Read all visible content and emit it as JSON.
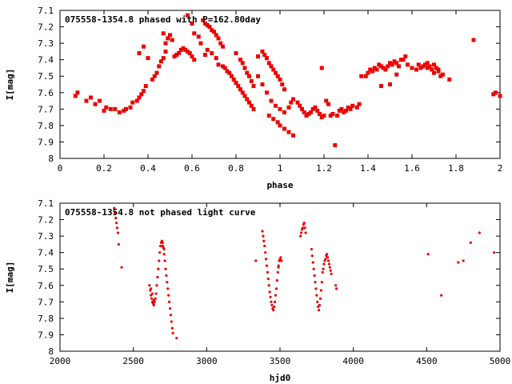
{
  "colors": {
    "marker": "#ee0000",
    "axis": "#000000",
    "background": "#ffffff"
  },
  "chart_data": [
    {
      "type": "scatter",
      "title": "075558-1354.8 phased with P=162.80day",
      "xlabel": "phase",
      "ylabel": "I[mag]",
      "xlim": [
        0,
        2
      ],
      "ylim": [
        7.1,
        8.0
      ],
      "y_inverted": true,
      "grid": false,
      "marker": "square",
      "x_ticks": [
        0,
        0.2,
        0.4,
        0.6,
        0.8,
        1,
        1.2,
        1.4,
        1.6,
        1.8,
        2
      ],
      "x_tick_labels": [
        "0",
        "0.2",
        "0.4",
        "0.6",
        "0.8",
        "1",
        "1.2",
        "1.4",
        "1.6",
        "1.8",
        "2"
      ],
      "y_ticks": [
        7.1,
        7.2,
        7.3,
        7.4,
        7.5,
        7.6,
        7.7,
        7.8,
        7.9,
        8.0
      ],
      "y_tick_labels": [
        "7.1",
        "7.2",
        "7.3",
        "7.4",
        "7.5",
        "7.6",
        "7.7",
        "7.8",
        "7.9",
        "8"
      ],
      "points": [
        [
          0.07,
          7.62
        ],
        [
          0.08,
          7.6
        ],
        [
          0.12,
          7.65
        ],
        [
          0.14,
          7.63
        ],
        [
          0.16,
          7.67
        ],
        [
          0.18,
          7.65
        ],
        [
          0.2,
          7.71
        ],
        [
          0.21,
          7.69
        ],
        [
          0.23,
          7.7
        ],
        [
          0.25,
          7.7
        ],
        [
          0.27,
          7.72
        ],
        [
          0.29,
          7.71
        ],
        [
          0.3,
          7.7
        ],
        [
          0.32,
          7.69
        ],
        [
          0.33,
          7.66
        ],
        [
          0.35,
          7.65
        ],
        [
          0.36,
          7.63
        ],
        [
          0.37,
          7.61
        ],
        [
          0.38,
          7.59
        ],
        [
          0.39,
          7.56
        ],
        [
          0.36,
          7.36
        ],
        [
          0.38,
          7.32
        ],
        [
          0.4,
          7.39
        ],
        [
          0.42,
          7.52
        ],
        [
          0.43,
          7.5
        ],
        [
          0.44,
          7.48
        ],
        [
          0.45,
          7.44
        ],
        [
          0.46,
          7.41
        ],
        [
          0.47,
          7.39
        ],
        [
          0.48,
          7.35
        ],
        [
          0.47,
          7.24
        ],
        [
          0.48,
          7.3
        ],
        [
          0.49,
          7.27
        ],
        [
          0.5,
          7.25
        ],
        [
          0.51,
          7.28
        ],
        [
          0.52,
          7.38
        ],
        [
          0.53,
          7.37
        ],
        [
          0.54,
          7.36
        ],
        [
          0.55,
          7.34
        ],
        [
          0.56,
          7.33
        ],
        [
          0.57,
          7.34
        ],
        [
          0.58,
          7.35
        ],
        [
          0.59,
          7.36
        ],
        [
          0.6,
          7.38
        ],
        [
          0.61,
          7.4
        ],
        [
          0.58,
          7.13
        ],
        [
          0.6,
          7.18
        ],
        [
          0.61,
          7.24
        ],
        [
          0.63,
          7.26
        ],
        [
          0.64,
          7.3
        ],
        [
          0.65,
          7.16
        ],
        [
          0.66,
          7.18
        ],
        [
          0.67,
          7.19
        ],
        [
          0.68,
          7.2
        ],
        [
          0.69,
          7.22
        ],
        [
          0.7,
          7.23
        ],
        [
          0.71,
          7.25
        ],
        [
          0.72,
          7.27
        ],
        [
          0.73,
          7.3
        ],
        [
          0.74,
          7.32
        ],
        [
          0.66,
          7.37
        ],
        [
          0.67,
          7.34
        ],
        [
          0.69,
          7.36
        ],
        [
          0.71,
          7.39
        ],
        [
          0.72,
          7.43
        ],
        [
          0.74,
          7.44
        ],
        [
          0.75,
          7.45
        ],
        [
          0.76,
          7.47
        ],
        [
          0.77,
          7.48
        ],
        [
          0.78,
          7.5
        ],
        [
          0.79,
          7.52
        ],
        [
          0.8,
          7.54
        ],
        [
          0.81,
          7.56
        ],
        [
          0.82,
          7.58
        ],
        [
          0.83,
          7.6
        ],
        [
          0.84,
          7.62
        ],
        [
          0.85,
          7.64
        ],
        [
          0.86,
          7.66
        ],
        [
          0.87,
          7.68
        ],
        [
          0.88,
          7.7
        ],
        [
          0.8,
          7.36
        ],
        [
          0.82,
          7.4
        ],
        [
          0.83,
          7.42
        ],
        [
          0.84,
          7.45
        ],
        [
          0.85,
          7.48
        ],
        [
          0.86,
          7.5
        ],
        [
          0.87,
          7.53
        ],
        [
          0.88,
          7.56
        ],
        [
          0.9,
          7.38
        ],
        [
          0.92,
          7.35
        ],
        [
          0.93,
          7.37
        ],
        [
          0.94,
          7.39
        ],
        [
          0.95,
          7.42
        ],
        [
          0.96,
          7.44
        ],
        [
          0.97,
          7.46
        ],
        [
          0.98,
          7.48
        ],
        [
          0.99,
          7.5
        ],
        [
          1.0,
          7.52
        ],
        [
          1.01,
          7.55
        ],
        [
          1.02,
          7.58
        ],
        [
          0.9,
          7.5
        ],
        [
          0.92,
          7.55
        ],
        [
          0.94,
          7.6
        ],
        [
          0.96,
          7.65
        ],
        [
          0.98,
          7.68
        ],
        [
          1.0,
          7.7
        ],
        [
          1.02,
          7.72
        ],
        [
          1.04,
          7.69
        ],
        [
          1.05,
          7.66
        ],
        [
          1.06,
          7.64
        ],
        [
          0.95,
          7.74
        ],
        [
          0.97,
          7.76
        ],
        [
          0.99,
          7.78
        ],
        [
          1.0,
          7.8
        ],
        [
          1.02,
          7.82
        ],
        [
          1.04,
          7.84
        ],
        [
          1.06,
          7.86
        ],
        [
          1.08,
          7.66
        ],
        [
          1.09,
          7.68
        ],
        [
          1.1,
          7.7
        ],
        [
          1.11,
          7.72
        ],
        [
          1.12,
          7.74
        ],
        [
          1.13,
          7.73
        ],
        [
          1.14,
          7.72
        ],
        [
          1.15,
          7.7
        ],
        [
          1.16,
          7.69
        ],
        [
          1.17,
          7.71
        ],
        [
          1.18,
          7.73
        ],
        [
          1.19,
          7.75
        ],
        [
          1.2,
          7.74
        ],
        [
          1.19,
          7.45
        ],
        [
          1.21,
          7.65
        ],
        [
          1.22,
          7.67
        ],
        [
          1.23,
          7.74
        ],
        [
          1.24,
          7.73
        ],
        [
          1.25,
          7.92
        ],
        [
          1.26,
          7.74
        ],
        [
          1.27,
          7.71
        ],
        [
          1.28,
          7.7
        ],
        [
          1.29,
          7.72
        ],
        [
          1.3,
          7.71
        ],
        [
          1.31,
          7.69
        ],
        [
          1.32,
          7.7
        ],
        [
          1.33,
          7.68
        ],
        [
          1.35,
          7.69
        ],
        [
          1.36,
          7.67
        ],
        [
          1.37,
          7.5
        ],
        [
          1.39,
          7.5
        ],
        [
          1.4,
          7.48
        ],
        [
          1.41,
          7.46
        ],
        [
          1.42,
          7.47
        ],
        [
          1.43,
          7.45
        ],
        [
          1.44,
          7.46
        ],
        [
          1.45,
          7.43
        ],
        [
          1.46,
          7.44
        ],
        [
          1.47,
          7.45
        ],
        [
          1.48,
          7.46
        ],
        [
          1.49,
          7.44
        ],
        [
          1.5,
          7.42
        ],
        [
          1.51,
          7.43
        ],
        [
          1.52,
          7.41
        ],
        [
          1.53,
          7.42
        ],
        [
          1.54,
          7.44
        ],
        [
          1.56,
          7.4
        ],
        [
          1.58,
          7.43
        ],
        [
          1.6,
          7.45
        ],
        [
          1.62,
          7.46
        ],
        [
          1.64,
          7.45
        ],
        [
          1.65,
          7.44
        ],
        [
          1.66,
          7.43
        ],
        [
          1.67,
          7.45
        ],
        [
          1.68,
          7.44
        ],
        [
          1.69,
          7.46
        ],
        [
          1.7,
          7.43
        ],
        [
          1.71,
          7.45
        ],
        [
          1.72,
          7.47
        ],
        [
          1.73,
          7.5
        ],
        [
          1.74,
          7.49
        ],
        [
          1.46,
          7.56
        ],
        [
          1.5,
          7.55
        ],
        [
          1.53,
          7.49
        ],
        [
          1.55,
          7.4
        ],
        [
          1.57,
          7.38
        ],
        [
          1.63,
          7.43
        ],
        [
          1.67,
          7.42
        ],
        [
          1.7,
          7.48
        ],
        [
          1.72,
          7.46
        ],
        [
          1.77,
          7.52
        ],
        [
          1.88,
          7.28
        ],
        [
          1.97,
          7.61
        ],
        [
          1.98,
          7.6
        ],
        [
          2.0,
          7.62
        ]
      ]
    },
    {
      "type": "scatter",
      "title": "075558-1354.8 not phased light curve",
      "xlabel": "hjd0",
      "ylabel": "I[mag]",
      "xlim": [
        2000,
        5000
      ],
      "ylim": [
        7.1,
        8.0
      ],
      "y_inverted": true,
      "grid": false,
      "marker": "dot",
      "x_ticks": [
        2000,
        2500,
        3000,
        3500,
        4000,
        4500,
        5000
      ],
      "x_tick_labels": [
        "2000",
        "2500",
        "3000",
        "3500",
        "4000",
        "4500",
        "5000"
      ],
      "y_ticks": [
        7.1,
        7.2,
        7.3,
        7.4,
        7.5,
        7.6,
        7.7,
        7.8,
        7.9,
        8.0
      ],
      "y_tick_labels": [
        "7.1",
        "7.2",
        "7.3",
        "7.4",
        "7.5",
        "7.6",
        "7.7",
        "7.8",
        "7.9",
        "8"
      ],
      "points": [
        [
          2370,
          7.13
        ],
        [
          2375,
          7.16
        ],
        [
          2380,
          7.19
        ],
        [
          2385,
          7.22
        ],
        [
          2390,
          7.25
        ],
        [
          2395,
          7.28
        ],
        [
          2400,
          7.35
        ],
        [
          2420,
          7.49
        ],
        [
          2610,
          7.6
        ],
        [
          2615,
          7.63
        ],
        [
          2620,
          7.66
        ],
        [
          2625,
          7.68
        ],
        [
          2630,
          7.7
        ],
        [
          2635,
          7.71
        ],
        [
          2640,
          7.72
        ],
        [
          2645,
          7.7
        ],
        [
          2650,
          7.68
        ],
        [
          2655,
          7.65
        ],
        [
          2660,
          7.6
        ],
        [
          2665,
          7.55
        ],
        [
          2670,
          7.5
        ],
        [
          2675,
          7.45
        ],
        [
          2680,
          7.4
        ],
        [
          2685,
          7.36
        ],
        [
          2690,
          7.34
        ],
        [
          2695,
          7.33
        ],
        [
          2700,
          7.34
        ],
        [
          2705,
          7.37
        ],
        [
          2710,
          7.41
        ],
        [
          2715,
          7.45
        ],
        [
          2720,
          7.5
        ],
        [
          2725,
          7.54
        ],
        [
          2730,
          7.58
        ],
        [
          2735,
          7.62
        ],
        [
          2740,
          7.66
        ],
        [
          2745,
          7.7
        ],
        [
          2750,
          7.74
        ],
        [
          2755,
          7.78
        ],
        [
          2760,
          7.82
        ],
        [
          2765,
          7.86
        ],
        [
          2770,
          7.89
        ],
        [
          2795,
          7.92
        ],
        [
          2620,
          7.62
        ],
        [
          2630,
          7.65
        ],
        [
          2640,
          7.69
        ],
        [
          2700,
          7.36
        ],
        [
          2710,
          7.38
        ],
        [
          3335,
          7.45
        ],
        [
          3380,
          7.27
        ],
        [
          3385,
          7.3
        ],
        [
          3390,
          7.33
        ],
        [
          3395,
          7.36
        ],
        [
          3400,
          7.4
        ],
        [
          3405,
          7.44
        ],
        [
          3410,
          7.48
        ],
        [
          3415,
          7.52
        ],
        [
          3420,
          7.56
        ],
        [
          3425,
          7.6
        ],
        [
          3430,
          7.64
        ],
        [
          3435,
          7.67
        ],
        [
          3440,
          7.7
        ],
        [
          3445,
          7.72
        ],
        [
          3450,
          7.74
        ],
        [
          3455,
          7.75
        ],
        [
          3460,
          7.73
        ],
        [
          3465,
          7.7
        ],
        [
          3470,
          7.66
        ],
        [
          3475,
          7.62
        ],
        [
          3480,
          7.57
        ],
        [
          3485,
          7.52
        ],
        [
          3490,
          7.48
        ],
        [
          3495,
          7.45
        ],
        [
          3500,
          7.44
        ],
        [
          3505,
          7.43
        ],
        [
          3510,
          7.45
        ],
        [
          3490,
          7.49
        ],
        [
          3640,
          7.3
        ],
        [
          3645,
          7.28
        ],
        [
          3650,
          7.26
        ],
        [
          3655,
          7.25
        ],
        [
          3660,
          7.23
        ],
        [
          3665,
          7.22
        ],
        [
          3670,
          7.25
        ],
        [
          3675,
          7.28
        ],
        [
          3715,
          7.38
        ],
        [
          3720,
          7.42
        ],
        [
          3725,
          7.46
        ],
        [
          3730,
          7.5
        ],
        [
          3735,
          7.54
        ],
        [
          3740,
          7.58
        ],
        [
          3745,
          7.62
        ],
        [
          3750,
          7.66
        ],
        [
          3755,
          7.7
        ],
        [
          3760,
          7.73
        ],
        [
          3765,
          7.75
        ],
        [
          3770,
          7.72
        ],
        [
          3775,
          7.68
        ],
        [
          3780,
          7.63
        ],
        [
          3785,
          7.58
        ],
        [
          3790,
          7.52
        ],
        [
          3795,
          7.5
        ],
        [
          3800,
          7.47
        ],
        [
          3805,
          7.45
        ],
        [
          3810,
          7.44
        ],
        [
          3815,
          7.42
        ],
        [
          3820,
          7.41
        ],
        [
          3825,
          7.43
        ],
        [
          3830,
          7.45
        ],
        [
          3835,
          7.47
        ],
        [
          3840,
          7.49
        ],
        [
          3845,
          7.51
        ],
        [
          3850,
          7.53
        ],
        [
          3880,
          7.6
        ],
        [
          3885,
          7.62
        ],
        [
          4510,
          7.41
        ],
        [
          4600,
          7.66
        ],
        [
          4715,
          7.46
        ],
        [
          4750,
          7.45
        ],
        [
          4800,
          7.34
        ],
        [
          4860,
          7.28
        ],
        [
          4960,
          7.4
        ]
      ]
    }
  ]
}
